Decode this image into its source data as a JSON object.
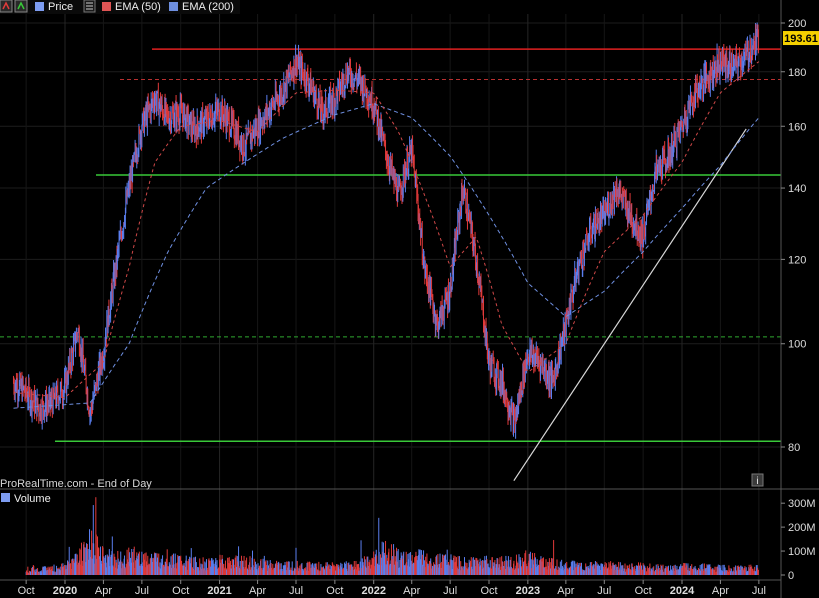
{
  "legend": {
    "items": [
      {
        "label": "Price",
        "color": "#7d9cf0"
      },
      {
        "label": "EMA (50)",
        "color": "#e05555"
      },
      {
        "label": "EMA (200)",
        "color": "#6e8fe0"
      }
    ]
  },
  "watermark": "ProRealTime.com - End of Day",
  "info_button": "i",
  "volume_label": "Volume",
  "colors": {
    "up": "#5b7ff0",
    "down": "#e23a3a",
    "support": "#39c939",
    "resistance": "#e02020",
    "trend": "#d8d8d8",
    "grid": "#1d1d1d"
  },
  "chart_data": {
    "type": "line",
    "title": "",
    "price_axis": {
      "ticks": [
        80,
        100,
        120,
        140,
        160,
        180,
        200
      ],
      "scale": "log",
      "range": [
        75,
        205
      ]
    },
    "last_price": {
      "value": 193.61,
      "label": "193.61"
    },
    "x_ticks": [
      {
        "label": "Oct",
        "date": "2019-10-01"
      },
      {
        "label": "2020",
        "date": "2020-01-01"
      },
      {
        "label": "Apr",
        "date": "2020-04-01"
      },
      {
        "label": "Jul",
        "date": "2020-07-01"
      },
      {
        "label": "Oct",
        "date": "2020-10-01"
      },
      {
        "label": "2021",
        "date": "2021-01-01"
      },
      {
        "label": "Apr",
        "date": "2021-04-01"
      },
      {
        "label": "Jul",
        "date": "2021-07-01"
      },
      {
        "label": "Oct",
        "date": "2021-10-01"
      },
      {
        "label": "2022",
        "date": "2022-01-01"
      },
      {
        "label": "Apr",
        "date": "2022-04-01"
      },
      {
        "label": "Jul",
        "date": "2022-07-01"
      },
      {
        "label": "Oct",
        "date": "2022-10-01"
      },
      {
        "label": "2023",
        "date": "2023-01-01"
      },
      {
        "label": "Apr",
        "date": "2023-04-01"
      },
      {
        "label": "Jul",
        "date": "2023-07-01"
      },
      {
        "label": "Oct",
        "date": "2023-10-01"
      },
      {
        "label": "2024",
        "date": "2024-01-01"
      },
      {
        "label": "Apr",
        "date": "2024-04-01"
      },
      {
        "label": "Jul",
        "date": "2024-07-01"
      }
    ],
    "horizontal_lines": [
      {
        "value": 189,
        "color": "#e02020",
        "style": "solid"
      },
      {
        "value": 177,
        "color": "#b83030",
        "style": "dashed"
      },
      {
        "value": 144,
        "color": "#39c939",
        "style": "solid"
      },
      {
        "value": 101.5,
        "color": "#2fa82f",
        "style": "dashed"
      },
      {
        "value": 81,
        "color": "#39c939",
        "style": "solid"
      }
    ],
    "trendline": {
      "from": {
        "date": "2023-01-01",
        "value": 78
      },
      "to": {
        "date": "2024-06-01",
        "value": 155
      }
    },
    "price_series": {
      "name": "Price",
      "points": [
        [
          "2019-09-01",
          92
        ],
        [
          "2019-10-01",
          90
        ],
        [
          "2019-11-01",
          87
        ],
        [
          "2019-12-01",
          88
        ],
        [
          "2020-01-01",
          91
        ],
        [
          "2020-02-01",
          103
        ],
        [
          "2020-03-01",
          86
        ],
        [
          "2020-04-01",
          98
        ],
        [
          "2020-05-01",
          118
        ],
        [
          "2020-06-01",
          140
        ],
        [
          "2020-07-01",
          160
        ],
        [
          "2020-08-01",
          170
        ],
        [
          "2020-09-01",
          163
        ],
        [
          "2020-10-01",
          165
        ],
        [
          "2020-11-01",
          159
        ],
        [
          "2020-12-01",
          162
        ],
        [
          "2021-01-01",
          166
        ],
        [
          "2021-02-01",
          160
        ],
        [
          "2021-03-01",
          153
        ],
        [
          "2021-04-01",
          160
        ],
        [
          "2021-05-01",
          166
        ],
        [
          "2021-06-01",
          173
        ],
        [
          "2021-07-01",
          184
        ],
        [
          "2021-08-01",
          176
        ],
        [
          "2021-09-01",
          165
        ],
        [
          "2021-10-01",
          170
        ],
        [
          "2021-11-01",
          180
        ],
        [
          "2021-12-01",
          176
        ],
        [
          "2022-01-01",
          168
        ],
        [
          "2022-02-01",
          150
        ],
        [
          "2022-03-01",
          138
        ],
        [
          "2022-04-01",
          152
        ],
        [
          "2022-05-01",
          118
        ],
        [
          "2022-06-01",
          104
        ],
        [
          "2022-07-01",
          112
        ],
        [
          "2022-08-01",
          140
        ],
        [
          "2022-09-01",
          120
        ],
        [
          "2022-10-01",
          96
        ],
        [
          "2022-11-01",
          92
        ],
        [
          "2022-12-01",
          84
        ],
        [
          "2023-01-01",
          98
        ],
        [
          "2023-02-01",
          96
        ],
        [
          "2023-03-01",
          92
        ],
        [
          "2023-04-01",
          104
        ],
        [
          "2023-05-01",
          118
        ],
        [
          "2023-06-01",
          128
        ],
        [
          "2023-07-01",
          132
        ],
        [
          "2023-08-01",
          140
        ],
        [
          "2023-09-01",
          132
        ],
        [
          "2023-10-01",
          126
        ],
        [
          "2023-11-01",
          145
        ],
        [
          "2023-12-01",
          150
        ],
        [
          "2024-01-01",
          160
        ],
        [
          "2024-02-01",
          172
        ],
        [
          "2024-03-01",
          178
        ],
        [
          "2024-04-01",
          184
        ],
        [
          "2024-05-01",
          182
        ],
        [
          "2024-06-01",
          186
        ],
        [
          "2024-07-01",
          193.61
        ]
      ]
    },
    "ema50_series": {
      "name": "EMA (50)",
      "points": [
        [
          "2019-09-01",
          90
        ],
        [
          "2020-01-01",
          89
        ],
        [
          "2020-04-01",
          96
        ],
        [
          "2020-06-01",
          118
        ],
        [
          "2020-08-01",
          148
        ],
        [
          "2020-10-01",
          160
        ],
        [
          "2021-01-01",
          162
        ],
        [
          "2021-04-01",
          158
        ],
        [
          "2021-07-01",
          172
        ],
        [
          "2021-10-01",
          173
        ],
        [
          "2022-01-01",
          172
        ],
        [
          "2022-03-01",
          158
        ],
        [
          "2022-05-01",
          138
        ],
        [
          "2022-07-01",
          118
        ],
        [
          "2022-09-01",
          126
        ],
        [
          "2022-11-01",
          104
        ],
        [
          "2023-01-01",
          94
        ],
        [
          "2023-04-01",
          100
        ],
        [
          "2023-07-01",
          122
        ],
        [
          "2023-10-01",
          132
        ],
        [
          "2024-01-01",
          148
        ],
        [
          "2024-04-01",
          172
        ],
        [
          "2024-07-01",
          184
        ]
      ]
    },
    "ema200_series": {
      "name": "EMA (200)",
      "points": [
        [
          "2019-09-01",
          87
        ],
        [
          "2020-03-01",
          88
        ],
        [
          "2020-06-01",
          100
        ],
        [
          "2020-09-01",
          122
        ],
        [
          "2020-12-01",
          140
        ],
        [
          "2021-03-01",
          148
        ],
        [
          "2021-06-01",
          156
        ],
        [
          "2021-10-01",
          164
        ],
        [
          "2022-01-01",
          168
        ],
        [
          "2022-04-01",
          163
        ],
        [
          "2022-07-01",
          150
        ],
        [
          "2022-10-01",
          132
        ],
        [
          "2023-01-01",
          114
        ],
        [
          "2023-04-01",
          106
        ],
        [
          "2023-07-01",
          112
        ],
        [
          "2023-10-01",
          122
        ],
        [
          "2024-01-01",
          134
        ],
        [
          "2024-04-01",
          147
        ],
        [
          "2024-07-01",
          163
        ]
      ]
    },
    "volume_axis": {
      "ticks": [
        {
          "value": 0,
          "label": "0"
        },
        {
          "value": 100,
          "label": "100M"
        },
        {
          "value": 200,
          "label": "200M"
        },
        {
          "value": 300,
          "label": "300M"
        }
      ],
      "max": 330
    },
    "volume_series": {
      "name": "Volume",
      "points": [
        [
          "2019-10-01",
          28
        ],
        [
          "2019-11-01",
          25
        ],
        [
          "2019-12-01",
          30
        ],
        [
          "2020-01-01",
          38
        ],
        [
          "2020-02-01",
          80
        ],
        [
          "2020-03-01",
          150
        ],
        [
          "2020-04-01",
          90
        ],
        [
          "2020-05-01",
          70
        ],
        [
          "2020-06-01",
          85
        ],
        [
          "2020-07-01",
          80
        ],
        [
          "2020-08-01",
          70
        ],
        [
          "2020-09-01",
          75
        ],
        [
          "2020-10-01",
          60
        ],
        [
          "2020-11-01",
          55
        ],
        [
          "2020-12-01",
          50
        ],
        [
          "2021-01-01",
          65
        ],
        [
          "2021-02-01",
          55
        ],
        [
          "2021-03-01",
          60
        ],
        [
          "2021-04-01",
          50
        ],
        [
          "2021-05-01",
          45
        ],
        [
          "2021-06-01",
          40
        ],
        [
          "2021-07-01",
          45
        ],
        [
          "2021-08-01",
          40
        ],
        [
          "2021-09-01",
          38
        ],
        [
          "2021-10-01",
          40
        ],
        [
          "2021-11-01",
          42
        ],
        [
          "2021-12-01",
          45
        ],
        [
          "2022-01-01",
          70
        ],
        [
          "2022-02-01",
          110
        ],
        [
          "2022-03-01",
          80
        ],
        [
          "2022-04-01",
          75
        ],
        [
          "2022-05-01",
          80
        ],
        [
          "2022-06-01",
          65
        ],
        [
          "2022-07-01",
          60
        ],
        [
          "2022-08-01",
          55
        ],
        [
          "2022-09-01",
          55
        ],
        [
          "2022-10-01",
          60
        ],
        [
          "2022-11-01",
          55
        ],
        [
          "2022-12-01",
          60
        ],
        [
          "2023-01-01",
          75
        ],
        [
          "2023-02-01",
          55
        ],
        [
          "2023-03-01",
          50
        ],
        [
          "2023-04-01",
          45
        ],
        [
          "2023-05-01",
          40
        ],
        [
          "2023-06-01",
          38
        ],
        [
          "2023-07-01",
          42
        ],
        [
          "2023-08-01",
          40
        ],
        [
          "2023-09-01",
          35
        ],
        [
          "2023-10-01",
          38
        ],
        [
          "2023-11-01",
          32
        ],
        [
          "2023-12-01",
          30
        ],
        [
          "2024-01-01",
          35
        ],
        [
          "2024-02-01",
          38
        ],
        [
          "2024-03-01",
          32
        ],
        [
          "2024-04-01",
          30
        ],
        [
          "2024-05-01",
          28
        ],
        [
          "2024-06-01",
          30
        ],
        [
          "2024-07-01",
          32
        ]
      ]
    }
  }
}
